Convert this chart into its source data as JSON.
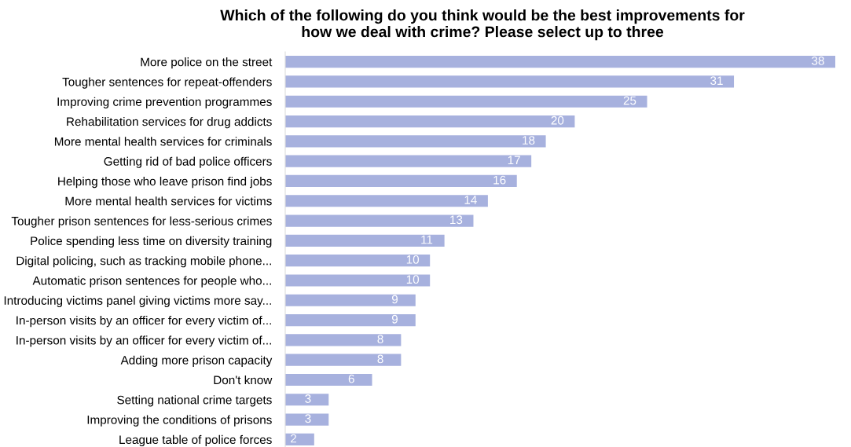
{
  "chart_data": {
    "type": "bar",
    "orientation": "horizontal",
    "title": "Which of the following do you think would be the best improvements for\nhow we deal with crime? Please select up to three",
    "categories": [
      "More police on the street",
      "Tougher sentences for repeat-offenders",
      "Improving crime prevention programmes",
      "Rehabilitation services for drug addicts",
      "More mental health services for criminals",
      "Getting rid of bad police officers",
      "Helping those who leave prison find jobs",
      "More mental health services for victims",
      "Tougher prison sentences for less-serious crimes",
      "Police spending less time on diversity training",
      "Digital policing, such as tracking mobile phone...",
      "Automatic prison sentences for people who...",
      "Introducing victims panel giving victims more say...",
      "In-person visits by an officer for every victim of...",
      "In-person visits by an officer for every victim of...",
      "Adding more prison capacity",
      "Don't know",
      "Setting national crime targets",
      "Improving the conditions of prisons",
      "League table of police forces"
    ],
    "values": [
      38,
      31,
      25,
      20,
      18,
      17,
      16,
      14,
      13,
      11,
      10,
      10,
      9,
      9,
      8,
      8,
      6,
      3,
      3,
      2
    ],
    "color": "#a7b1de",
    "data_labels": true
  }
}
